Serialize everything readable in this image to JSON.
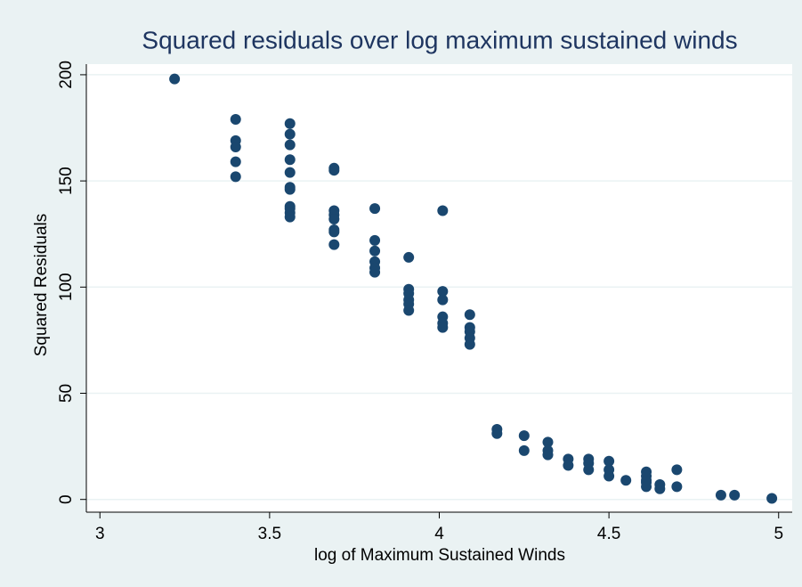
{
  "chart_data": {
    "type": "scatter",
    "title": "Squared residuals over log maximum sustained winds",
    "x_label": "log of Maximum Sustained Winds",
    "y_label": "Squared Residuals",
    "x": [
      3.22,
      3.4,
      3.4,
      3.4,
      3.4,
      3.4,
      3.56,
      3.56,
      3.56,
      3.56,
      3.56,
      3.56,
      3.56,
      3.56,
      3.56,
      3.56,
      3.56,
      3.69,
      3.69,
      3.69,
      3.69,
      3.69,
      3.69,
      3.69,
      3.69,
      3.81,
      3.81,
      3.81,
      3.81,
      3.81,
      3.81,
      3.91,
      3.91,
      3.91,
      3.91,
      3.91,
      3.91,
      4.01,
      4.01,
      4.01,
      4.01,
      4.01,
      4.01,
      4.09,
      4.09,
      4.09,
      4.09,
      4.09,
      4.17,
      4.17,
      4.25,
      4.25,
      4.32,
      4.32,
      4.32,
      4.38,
      4.38,
      4.44,
      4.44,
      4.44,
      4.5,
      4.5,
      4.5,
      4.55,
      4.61,
      4.61,
      4.61,
      4.61,
      4.61,
      4.65,
      4.65,
      4.7,
      4.7,
      4.83,
      4.87,
      4.98
    ],
    "values": [
      198,
      179,
      169,
      166,
      159,
      152,
      177,
      172,
      167,
      160,
      154,
      147,
      146,
      138,
      137,
      135,
      133,
      156,
      155,
      136,
      134,
      132,
      127,
      126,
      120,
      137,
      122,
      117,
      112,
      109,
      107,
      114,
      99,
      97,
      94,
      92,
      89,
      136,
      98,
      94,
      86,
      83,
      81,
      87,
      81,
      79,
      76,
      73,
      33,
      31,
      30,
      23,
      27,
      23,
      21,
      19,
      16,
      19,
      17,
      14,
      18,
      14,
      11,
      9,
      13,
      11,
      9,
      8,
      6,
      7,
      5,
      14,
      6,
      2,
      2,
      0.5
    ],
    "color": "#1a476f",
    "xlim": [
      2.96,
      5.04
    ],
    "ylim": [
      -6,
      205
    ],
    "xticks": [
      3,
      3.5,
      4,
      4.5,
      5
    ],
    "yticks": [
      0,
      50,
      100,
      150,
      200
    ],
    "grid": true
  }
}
